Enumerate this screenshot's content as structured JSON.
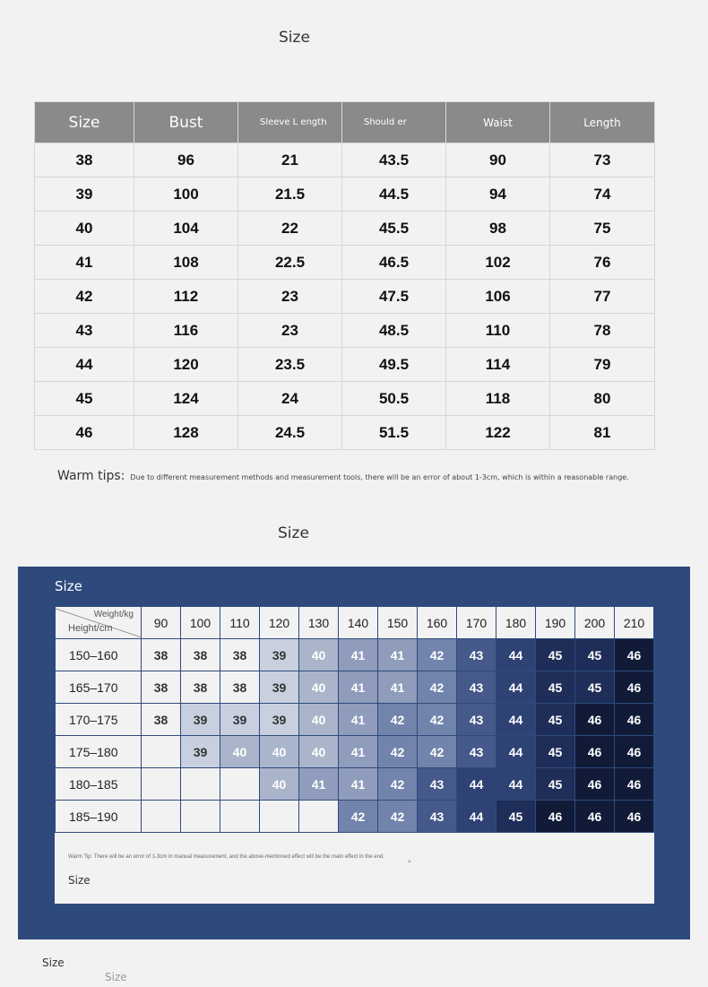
{
  "top_title": "Size",
  "measure_table": {
    "headers": [
      "Size",
      "Bust",
      "Sleeve L ength",
      "Should er",
      "Waist",
      "Length"
    ],
    "rows": [
      [
        "38",
        "96",
        "21",
        "43.5",
        "90",
        "73"
      ],
      [
        "39",
        "100",
        "21.5",
        "44.5",
        "94",
        "74"
      ],
      [
        "40",
        "104",
        "22",
        "45.5",
        "98",
        "75"
      ],
      [
        "41",
        "108",
        "22.5",
        "46.5",
        "102",
        "76"
      ],
      [
        "42",
        "112",
        "23",
        "47.5",
        "106",
        "77"
      ],
      [
        "43",
        "116",
        "23",
        "48.5",
        "110",
        "78"
      ],
      [
        "44",
        "120",
        "23.5",
        "49.5",
        "114",
        "79"
      ],
      [
        "45",
        "124",
        "24",
        "50.5",
        "118",
        "80"
      ],
      [
        "46",
        "128",
        "24.5",
        "51.5",
        "122",
        "81"
      ]
    ]
  },
  "warm_tips": {
    "label": "Warm tips:",
    "text": "Due to different measurement methods and measurement tools, there will be an error of about 1-3cm, which is within a reasonable range."
  },
  "second_title": "Size",
  "panel": {
    "title": "Size",
    "corner_weight": "Weight/kg",
    "corner_height": "Height/cm",
    "weights": [
      "90",
      "100",
      "110",
      "120",
      "130",
      "140",
      "150",
      "160",
      "170",
      "180",
      "190",
      "200",
      "210"
    ],
    "heights": [
      "150–160",
      "165–170",
      "170–175",
      "175–180",
      "180–185",
      "185–190"
    ],
    "grid": [
      [
        "38",
        "38",
        "38",
        "39",
        "40",
        "41",
        "41",
        "42",
        "43",
        "44",
        "45",
        "45",
        "46"
      ],
      [
        "38",
        "38",
        "38",
        "39",
        "40",
        "41",
        "41",
        "42",
        "43",
        "44",
        "45",
        "45",
        "46"
      ],
      [
        "38",
        "39",
        "39",
        "39",
        "40",
        "41",
        "42",
        "42",
        "43",
        "44",
        "45",
        "46",
        "46"
      ],
      [
        "",
        "39",
        "40",
        "40",
        "40",
        "41",
        "42",
        "42",
        "43",
        "44",
        "45",
        "46",
        "46"
      ],
      [
        "",
        "",
        "",
        "40",
        "41",
        "41",
        "42",
        "43",
        "44",
        "44",
        "45",
        "46",
        "46"
      ],
      [
        "",
        "",
        "",
        "",
        "",
        "42",
        "42",
        "43",
        "44",
        "45",
        "46",
        "46",
        "46"
      ]
    ],
    "size_colors": {
      "38": "#f2f2f2",
      "39": "#c8d0e0",
      "40": "#aab5cb",
      "41": "#8f9cbb",
      "42": "#7284ab",
      "43": "#46598b",
      "44": "#2e4274",
      "45": "#1e2e58",
      "46": "#111b38"
    },
    "note": "Warm Tip: There will be an error of 1-3cm in manual measurement, and the above-mentioned effect will be the main effect in the end.",
    "note_mark": ">",
    "inner_label": "Size"
  },
  "footer": {
    "label1": "Size",
    "label2": "Size"
  }
}
